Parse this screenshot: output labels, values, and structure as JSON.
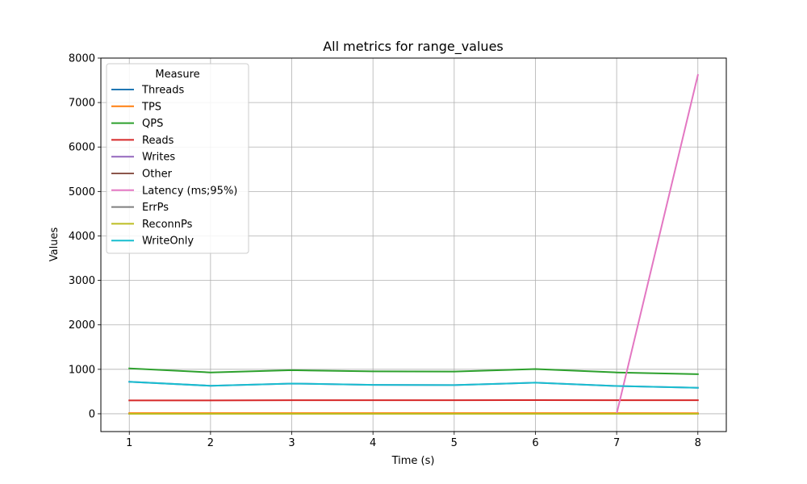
{
  "chart_data": {
    "type": "line",
    "title": "All metrics for range_values",
    "xlabel": "Time (s)",
    "ylabel": "Values",
    "x": [
      1,
      2,
      3,
      4,
      5,
      6,
      7,
      8
    ],
    "xlim": [
      0.65,
      8.35
    ],
    "ylim": [
      -400,
      8000
    ],
    "xticks": [
      1,
      2,
      3,
      4,
      5,
      6,
      7,
      8
    ],
    "yticks": [
      0,
      1000,
      2000,
      3000,
      4000,
      5000,
      6000,
      7000,
      8000
    ],
    "grid": true,
    "legend": {
      "title": "Measure",
      "placement": "upper-left"
    },
    "series": [
      {
        "name": "Threads",
        "color": "#1f77b4",
        "values": [
          8,
          8,
          8,
          8,
          8,
          8,
          8,
          8
        ]
      },
      {
        "name": "TPS",
        "color": "#ff7f0e",
        "values": [
          15,
          14,
          15,
          15,
          15,
          15,
          14,
          13
        ]
      },
      {
        "name": "QPS",
        "color": "#2ca02c",
        "values": [
          1020,
          930,
          980,
          955,
          950,
          1005,
          930,
          890
        ]
      },
      {
        "name": "Reads",
        "color": "#d62728",
        "values": [
          300,
          300,
          305,
          305,
          305,
          308,
          305,
          305
        ]
      },
      {
        "name": "Writes",
        "color": "#9467bd",
        "values": [
          720,
          630,
          680,
          650,
          645,
          700,
          625,
          585
        ]
      },
      {
        "name": "Other",
        "color": "#8c564b",
        "values": [
          0,
          0,
          0,
          0,
          0,
          0,
          0,
          0
        ]
      },
      {
        "name": "Latency (ms;95%)",
        "color": "#e377c2",
        "values": [
          0,
          0,
          0,
          0,
          0,
          0,
          0,
          7620
        ]
      },
      {
        "name": "ErrPs",
        "color": "#7f7f7f",
        "values": [
          0,
          0,
          0,
          0,
          0,
          0,
          0,
          0
        ]
      },
      {
        "name": "ReconnPs",
        "color": "#bcbd22",
        "values": [
          0,
          0,
          0,
          0,
          0,
          0,
          0,
          0
        ]
      },
      {
        "name": "WriteOnly",
        "color": "#17becf",
        "values": [
          720,
          630,
          680,
          650,
          645,
          700,
          625,
          585
        ]
      }
    ]
  }
}
